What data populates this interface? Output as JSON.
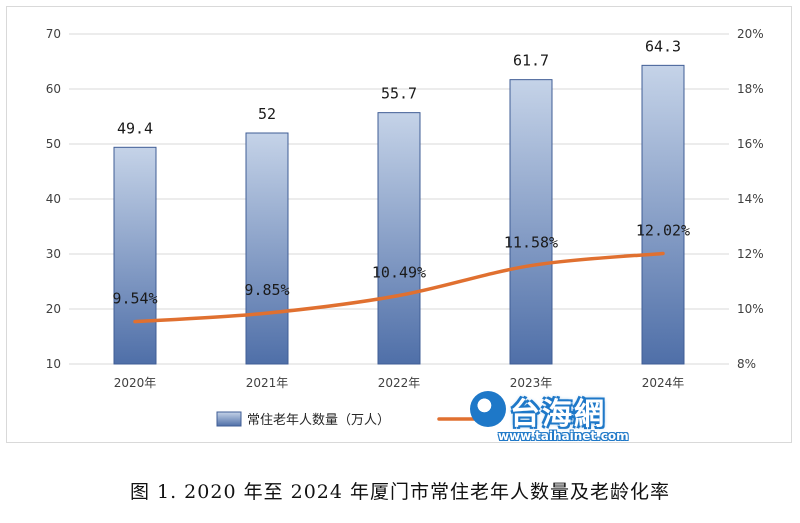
{
  "chart_data": {
    "type": "bar",
    "categories": [
      "2020年",
      "2021年",
      "2022年",
      "2023年",
      "2024年"
    ],
    "series": [
      {
        "name": "常住老年人数量（万人）",
        "type": "bar",
        "axis": "left",
        "values": [
          49.4,
          52,
          55.7,
          61.7,
          64.3
        ],
        "labels": [
          "49.4",
          "52",
          "55.7",
          "61.7",
          "64.3"
        ]
      },
      {
        "name": "",
        "type": "line",
        "axis": "right",
        "values": [
          9.54,
          9.85,
          10.49,
          11.58,
          12.02
        ],
        "labels": [
          "9.54%",
          "9.85%",
          "10.49%",
          "11.58%",
          "12.02%"
        ]
      }
    ],
    "y_left": {
      "min": 10,
      "max": 70,
      "ticks": [
        "10",
        "20",
        "30",
        "40",
        "50",
        "60",
        "70"
      ]
    },
    "y_right": {
      "min": 8,
      "max": 20,
      "ticks": [
        "8%",
        "10%",
        "12%",
        "14%",
        "16%",
        "18%",
        "20%"
      ]
    },
    "grid": true,
    "legend_position": "bottom",
    "colors": {
      "bar_top": "#c5d3e8",
      "bar_bottom": "#4f6fa8",
      "bar_edge": "#3f5d95",
      "line": "#e07030",
      "grid": "#d9d9d9"
    },
    "caption": "图 1. 2020 年至 2024 年厦门市常住老年人数量及老龄化率"
  },
  "watermark": {
    "title": "台海網",
    "url": "www.taihainet.com",
    "icon": "taihainet-logo-icon"
  }
}
